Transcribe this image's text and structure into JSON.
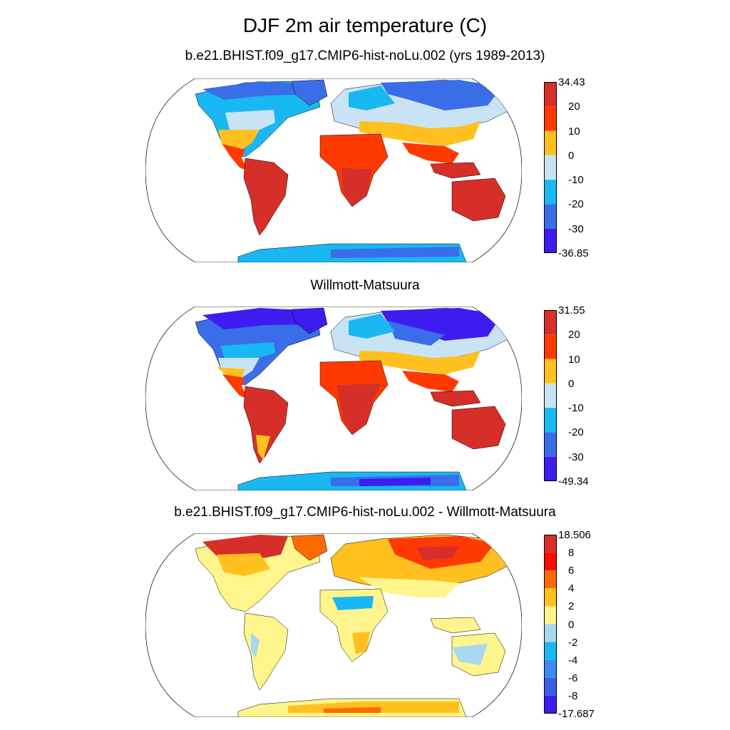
{
  "title": "DJF 2m air temperature (C)",
  "panels": [
    {
      "title": "b.e21.BHIST.f09_g17.CMIP6-hist-noLu.002 (yrs 1989-2013)",
      "colorbar": {
        "labels": [
          "34.43",
          "20",
          "10",
          "0",
          "-10",
          "-20",
          "-30",
          "-36.85"
        ],
        "colors": [
          "#d62f2a",
          "#ff3a00",
          "#ffc020",
          "#c8e4f4",
          "#19b8f2",
          "#3a6ee8",
          "#3e1cf0"
        ]
      }
    },
    {
      "title": "Willmott-Matsuura",
      "colorbar": {
        "labels": [
          "31.55",
          "20",
          "10",
          "0",
          "-10",
          "-20",
          "-30",
          "-49.34"
        ],
        "colors": [
          "#d62f2a",
          "#ff3a00",
          "#ffc020",
          "#c8e4f4",
          "#19b8f2",
          "#3a6ee8",
          "#3e1cf0"
        ]
      }
    },
    {
      "title": "b.e21.BHIST.f09_g17.CMIP6-hist-noLu.002 - Willmott-Matsuura",
      "colorbar": {
        "labels": [
          "18.506",
          "8",
          "6",
          "4",
          "2",
          "0",
          "-2",
          "-4",
          "-6",
          "-8",
          "-17.687"
        ],
        "colors": [
          "#d62f2a",
          "#ff0a00",
          "#ff6a00",
          "#ffc020",
          "#fff58c",
          "#a8d8ef",
          "#19b8f2",
          "#3a8cf0",
          "#3a5ee8",
          "#3e1cf0"
        ]
      }
    }
  ],
  "map_colors": {
    "panel1": {
      "cold": "#3a6ee8",
      "cool": "#19b8f2",
      "mild": "#c8e4f4",
      "warm": "#ffc020",
      "hot": "#ff3a00",
      "veryhot": "#d62f2a",
      "coldest": "#3e1cf0"
    },
    "panel3": {
      "pos2": "#fff58c",
      "pos4": "#ffc020",
      "pos6": "#ff6a00",
      "pos8": "#ff0a00",
      "pos_high": "#d62f2a",
      "neg0": "#a8d8ef",
      "neg2": "#19b8f2",
      "neg4": "#3a8cf0"
    }
  }
}
